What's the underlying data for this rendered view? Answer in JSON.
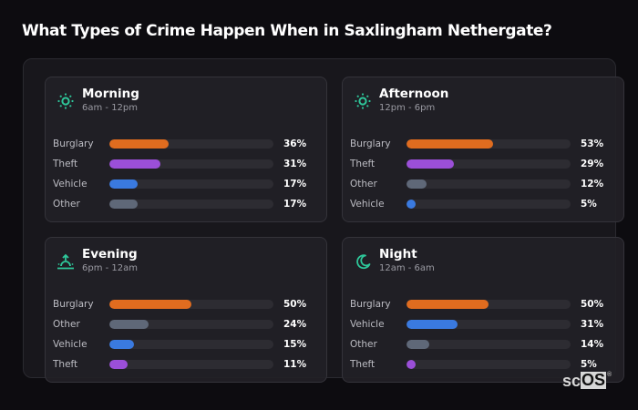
{
  "title": "What Types of Crime Happen When in Saxlingham Nethergate?",
  "colors": {
    "Burglary": "#e06c1f",
    "Theft": "#9b4fd8",
    "Vehicle": "#3a7ae0",
    "Other": "#5f6878",
    "icon": "#2ec79a"
  },
  "cards": [
    {
      "name": "Morning",
      "time": "6am - 12pm",
      "icon": "sun-icon",
      "rows": [
        {
          "label": "Burglary",
          "value": 36,
          "display": "36%"
        },
        {
          "label": "Theft",
          "value": 31,
          "display": "31%"
        },
        {
          "label": "Vehicle",
          "value": 17,
          "display": "17%"
        },
        {
          "label": "Other",
          "value": 17,
          "display": "17%"
        }
      ]
    },
    {
      "name": "Afternoon",
      "time": "12pm - 6pm",
      "icon": "sun-icon",
      "rows": [
        {
          "label": "Burglary",
          "value": 53,
          "display": "53%"
        },
        {
          "label": "Theft",
          "value": 29,
          "display": "29%"
        },
        {
          "label": "Other",
          "value": 12,
          "display": "12%"
        },
        {
          "label": "Vehicle",
          "value": 5,
          "display": "5%"
        }
      ]
    },
    {
      "name": "Evening",
      "time": "6pm - 12am",
      "icon": "sunset-icon",
      "rows": [
        {
          "label": "Burglary",
          "value": 50,
          "display": "50%"
        },
        {
          "label": "Other",
          "value": 24,
          "display": "24%"
        },
        {
          "label": "Vehicle",
          "value": 15,
          "display": "15%"
        },
        {
          "label": "Theft",
          "value": 11,
          "display": "11%"
        }
      ]
    },
    {
      "name": "Night",
      "time": "12am - 6am",
      "icon": "moon-icon",
      "rows": [
        {
          "label": "Burglary",
          "value": 50,
          "display": "50%"
        },
        {
          "label": "Vehicle",
          "value": 31,
          "display": "31%"
        },
        {
          "label": "Other",
          "value": 14,
          "display": "14%"
        },
        {
          "label": "Theft",
          "value": 5,
          "display": "5%"
        }
      ]
    }
  ],
  "logo": {
    "sc": "sc",
    "os": "OS",
    "reg": "®"
  },
  "chart_data": [
    {
      "type": "bar",
      "title": "Morning",
      "subtitle": "6am - 12pm",
      "categories": [
        "Burglary",
        "Theft",
        "Vehicle",
        "Other"
      ],
      "values": [
        36,
        31,
        17,
        17
      ],
      "xlim": [
        0,
        100
      ],
      "unit": "%"
    },
    {
      "type": "bar",
      "title": "Afternoon",
      "subtitle": "12pm - 6pm",
      "categories": [
        "Burglary",
        "Theft",
        "Other",
        "Vehicle"
      ],
      "values": [
        53,
        29,
        12,
        5
      ],
      "xlim": [
        0,
        100
      ],
      "unit": "%"
    },
    {
      "type": "bar",
      "title": "Evening",
      "subtitle": "6pm - 12am",
      "categories": [
        "Burglary",
        "Other",
        "Vehicle",
        "Theft"
      ],
      "values": [
        50,
        24,
        15,
        11
      ],
      "xlim": [
        0,
        100
      ],
      "unit": "%"
    },
    {
      "type": "bar",
      "title": "Night",
      "subtitle": "12am - 6am",
      "categories": [
        "Burglary",
        "Vehicle",
        "Other",
        "Theft"
      ],
      "values": [
        50,
        31,
        14,
        5
      ],
      "xlim": [
        0,
        100
      ],
      "unit": "%"
    }
  ]
}
